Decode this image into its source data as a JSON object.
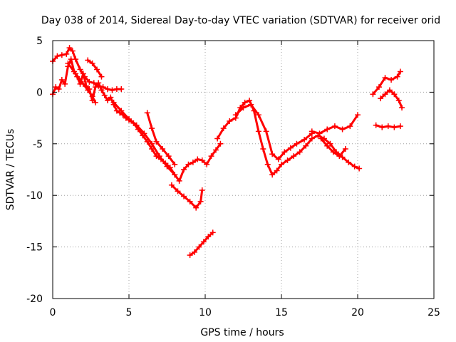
{
  "chart_data": {
    "type": "scatter",
    "title": "Day 038 of 2014, Sidereal Day-to-day VTEC variation (SDTVAR) for receiver orid",
    "xlabel": "GPS time / hours",
    "ylabel": "SDTVAR / TECUs",
    "xlim": [
      0,
      25
    ],
    "ylim": [
      -20,
      5
    ],
    "xticks": [
      0,
      5,
      10,
      15,
      20,
      25
    ],
    "yticks": [
      5,
      0,
      -5,
      -10,
      -15,
      -20
    ],
    "grid": true,
    "marker": "plus",
    "color": "#ff0000",
    "series": [
      {
        "name": "track-early",
        "x": [
          0.0,
          0.2,
          0.4,
          0.6,
          0.8,
          1.0,
          1.2,
          1.4,
          1.6,
          1.8,
          2.0,
          2.2,
          2.4,
          2.6,
          2.8,
          3.0,
          3.2,
          3.4,
          3.6,
          3.8,
          4.0,
          4.2,
          4.4,
          4.6,
          4.8,
          5.0,
          5.3,
          5.6,
          5.9,
          6.2,
          6.5,
          6.8,
          7.1,
          7.4,
          7.7,
          8.0,
          8.3,
          8.6,
          8.9,
          9.2,
          9.5,
          9.8,
          10.1,
          10.4,
          10.7,
          11.0
        ],
        "y": [
          -0.2,
          0.5,
          0.3,
          1.2,
          0.8,
          2.5,
          3.2,
          2.0,
          1.5,
          0.8,
          1.8,
          0.6,
          0.3,
          -0.8,
          0.5,
          0.9,
          0.2,
          -0.3,
          -0.8,
          -0.5,
          -1.2,
          -1.8,
          -2.0,
          -2.2,
          -2.5,
          -2.7,
          -3.0,
          -3.6,
          -4.2,
          -4.8,
          -5.5,
          -6.2,
          -6.5,
          -6.9,
          -7.3,
          -8.0,
          -8.6,
          -7.5,
          -7.0,
          -6.8,
          -6.5,
          -6.6,
          -7.0,
          -6.2,
          -5.6,
          -5.0
        ]
      },
      {
        "name": "track-upper",
        "x": [
          0.0,
          0.3,
          0.6,
          0.9,
          1.1,
          1.3,
          1.5,
          1.8,
          2.1,
          2.4,
          2.7,
          3.0,
          3.3,
          3.6,
          3.9,
          4.2,
          4.5
        ],
        "y": [
          3.0,
          3.5,
          3.6,
          3.7,
          4.3,
          4.0,
          3.2,
          2.2,
          1.5,
          1.0,
          0.9,
          0.6,
          0.5,
          0.3,
          0.2,
          0.3,
          0.3
        ]
      },
      {
        "name": "track-upper-branch",
        "x": [
          2.3,
          2.6,
          2.9,
          3.2
        ],
        "y": [
          3.1,
          2.8,
          2.2,
          1.5
        ]
      },
      {
        "name": "track-mid",
        "x": [
          1.0,
          1.5,
          2.0,
          2.3,
          2.6,
          2.8
        ],
        "y": [
          2.8,
          1.8,
          0.8,
          0.2,
          -0.4,
          -1.0
        ]
      },
      {
        "name": "track-lower",
        "x": [
          4.0,
          4.5,
          5.0,
          5.5,
          6.0,
          6.5,
          7.0,
          7.5,
          8.0
        ],
        "y": [
          -1.0,
          -1.8,
          -2.6,
          -3.2,
          -4.0,
          -5.0,
          -6.2,
          -7.2,
          -8.0
        ]
      },
      {
        "name": "track-dip",
        "x": [
          7.8,
          8.2,
          8.6,
          9.0,
          9.4,
          9.7,
          9.8
        ],
        "y": [
          -9.0,
          -9.6,
          -10.1,
          -10.6,
          -11.2,
          -10.6,
          -9.5
        ]
      },
      {
        "name": "track-b",
        "x": [
          6.2,
          6.5,
          6.8,
          7.2,
          7.6,
          8.0
        ],
        "y": [
          -2.0,
          -3.5,
          -4.8,
          -5.5,
          -6.2,
          -7.0
        ]
      },
      {
        "name": "track-isolated",
        "x": [
          9.0,
          9.3,
          9.6,
          9.9,
          10.2,
          10.5
        ],
        "y": [
          -15.8,
          -15.5,
          -15.0,
          -14.5,
          -14.0,
          -13.6
        ]
      },
      {
        "name": "track-mid-day",
        "x": [
          10.8,
          11.2,
          11.6,
          12.0,
          12.3,
          12.6,
          12.9,
          13.2,
          13.5,
          13.8,
          14.1,
          14.4,
          14.7,
          15.0,
          15.4,
          15.8,
          16.2,
          16.6,
          17.0,
          17.4,
          17.8,
          18.2,
          18.6,
          19.0,
          19.4,
          19.8,
          20.1
        ],
        "y": [
          -4.5,
          -3.5,
          -2.8,
          -2.5,
          -1.5,
          -1.0,
          -0.8,
          -1.8,
          -3.8,
          -5.5,
          -7.0,
          -8.0,
          -7.6,
          -7.0,
          -6.6,
          -6.2,
          -5.8,
          -5.2,
          -4.5,
          -4.2,
          -4.5,
          -5.0,
          -5.8,
          -6.3,
          -6.8,
          -7.2,
          -7.4
        ]
      },
      {
        "name": "track-mid-day-b",
        "x": [
          12.0,
          12.5,
          13.0,
          13.5,
          14.0,
          14.4,
          14.8,
          15.2,
          15.6,
          16.0,
          16.5,
          17.0
        ],
        "y": [
          -2.2,
          -1.5,
          -1.2,
          -2.2,
          -3.8,
          -6.0,
          -6.5,
          -5.8,
          -5.4,
          -5.0,
          -4.6,
          -4.0
        ]
      },
      {
        "name": "track-evening",
        "x": [
          17.0,
          17.5,
          18.0,
          18.5,
          19.0,
          19.5,
          20.0
        ],
        "y": [
          -3.8,
          -4.0,
          -3.6,
          -3.3,
          -3.6,
          -3.3,
          -2.2
        ]
      },
      {
        "name": "track-evening-b",
        "x": [
          17.6,
          18.0,
          18.4,
          18.8,
          19.2
        ],
        "y": [
          -4.5,
          -5.2,
          -5.8,
          -6.2,
          -5.5
        ]
      },
      {
        "name": "track-late",
        "x": [
          21.0,
          21.4,
          21.8,
          22.2,
          22.6,
          22.8
        ],
        "y": [
          -0.2,
          0.5,
          1.4,
          1.2,
          1.5,
          2.0
        ]
      },
      {
        "name": "track-late-b",
        "x": [
          21.5,
          21.8,
          22.1,
          22.4,
          22.7,
          22.9
        ],
        "y": [
          -0.6,
          -0.2,
          0.2,
          -0.2,
          -0.8,
          -1.5
        ]
      },
      {
        "name": "track-late-c",
        "x": [
          21.2,
          21.6,
          22.0,
          22.4,
          22.8
        ],
        "y": [
          -3.2,
          -3.4,
          -3.3,
          -3.4,
          -3.3
        ]
      }
    ]
  }
}
